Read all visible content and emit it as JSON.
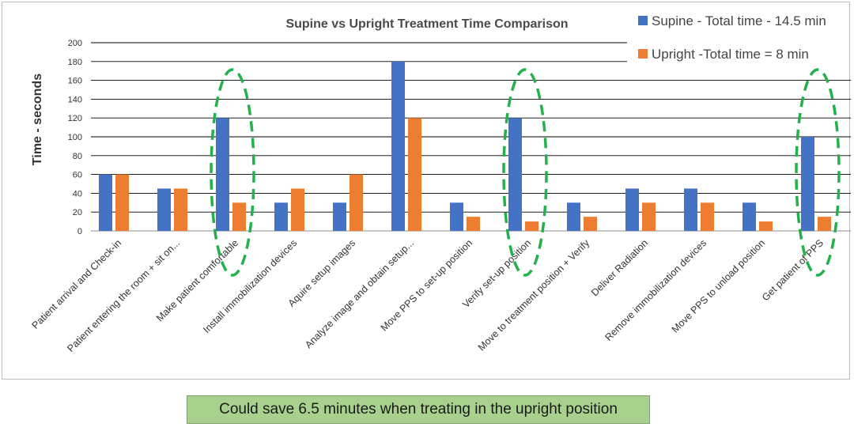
{
  "chart_data": {
    "type": "bar",
    "title": "Supine vs Upright Treatment Time Comparison",
    "ylabel": "Time - seconds",
    "xlabel": "",
    "ylim": [
      0,
      200
    ],
    "yticks": [
      0,
      20,
      40,
      60,
      80,
      100,
      120,
      140,
      160,
      180,
      200
    ],
    "grid": true,
    "legend_position": "top-right",
    "categories": [
      "Patient arrival and Check-in",
      "Patient entering the room + sit on...",
      "Make patient comfortable",
      "Install immobilization devices",
      "Aquire setup images",
      "Analyze image and obtain setup...",
      "Move PPS to set-up position",
      "Verify set-up position",
      "Move to treatment position + Verify",
      "Deliver Radiation",
      "Remove immobilization devices",
      "Move PPS to unload position",
      "Get patient of PPS"
    ],
    "series": [
      {
        "name": "Supine - Total time - 14.5 min",
        "color": "#4472c4",
        "values": [
          60,
          45,
          120,
          30,
          30,
          180,
          30,
          120,
          30,
          45,
          45,
          30,
          100
        ]
      },
      {
        "name": "Upright -Total time = 8 min",
        "color": "#ed7d31",
        "values": [
          60,
          45,
          30,
          45,
          60,
          120,
          15,
          10,
          15,
          30,
          30,
          10,
          15
        ]
      }
    ],
    "highlighted_categories": [
      2,
      7,
      12
    ],
    "highlight_color": "#22b14c"
  },
  "footer": {
    "note": "Could save 6.5 minutes when treating in the upright position"
  }
}
